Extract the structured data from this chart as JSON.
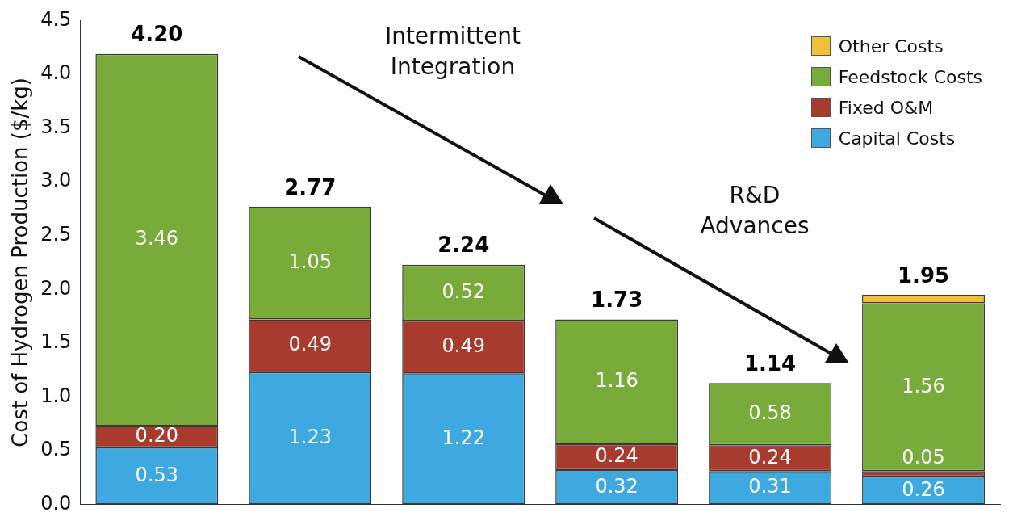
{
  "chart_data": {
    "type": "bar",
    "ylabel": "Cost of Hydrogen Production ($/kg)",
    "categories": [
      null,
      null,
      null,
      null,
      null,
      null
    ],
    "stacked": true,
    "series": [
      {
        "name": "Capital Costs",
        "color": "#3ea8e0",
        "values": [
          0.53,
          1.23,
          1.22,
          0.32,
          0.31,
          0.26
        ],
        "value_labels": [
          "0.53",
          "1.23",
          "1.22",
          "0.32",
          "0.31",
          "0.26"
        ]
      },
      {
        "name": "Fixed O&M",
        "color": "#a93a2e",
        "values": [
          0.2,
          0.49,
          0.49,
          0.24,
          0.24,
          0.05
        ],
        "value_labels": [
          "0.20",
          "0.49",
          "0.49",
          "0.24",
          "0.24",
          "0.05"
        ]
      },
      {
        "name": "Feedstock Costs",
        "color": "#78ab3a",
        "values": [
          3.46,
          1.05,
          0.52,
          1.16,
          0.58,
          1.56
        ],
        "value_labels": [
          "3.46",
          "1.05",
          "0.52",
          "1.16",
          "0.58",
          "1.56"
        ]
      },
      {
        "name": "Other Costs",
        "color": "#f0c03a",
        "values": [
          null,
          null,
          null,
          null,
          null,
          0.08
        ]
      }
    ],
    "totals": [
      "4.20",
      "2.77",
      "2.24",
      "1.73",
      "1.14",
      "1.95"
    ],
    "ylim": [
      0,
      4.5
    ],
    "yticks": [
      {
        "value": 0,
        "label": "0.0"
      },
      0.5,
      {
        "value": 1,
        "label": "1.0"
      },
      1.5,
      {
        "value": 2,
        "label": "2.0"
      },
      2.5,
      {
        "value": 3,
        "label": "3.0"
      },
      3.5,
      {
        "value": 4,
        "label": "4.0"
      },
      4.5
    ],
    "tick_labels": "y",
    "grid": false,
    "legend": "top right",
    "annotations": [
      "Intermittent Integration",
      "R&D Advances"
    ]
  }
}
